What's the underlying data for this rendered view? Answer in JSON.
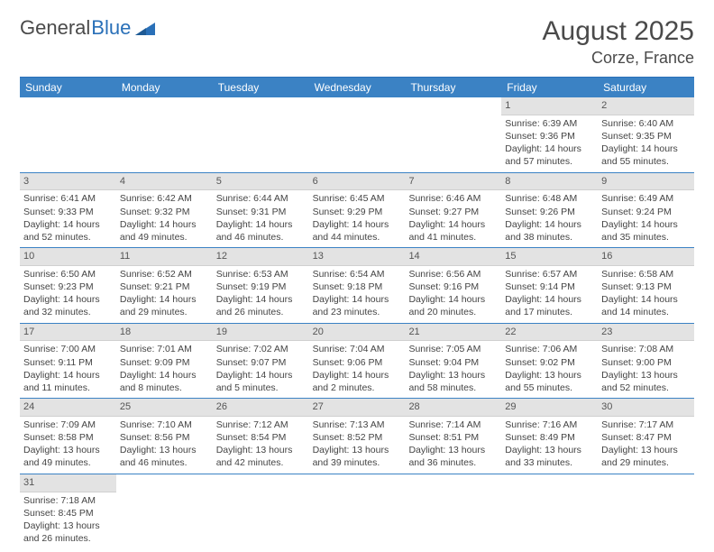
{
  "logo": {
    "text1": "General",
    "text2": "Blue"
  },
  "title": "August 2025",
  "location": "Corze, France",
  "day_headers": [
    "Sunday",
    "Monday",
    "Tuesday",
    "Wednesday",
    "Thursday",
    "Friday",
    "Saturday"
  ],
  "colors": {
    "header_bg": "#3b82c4",
    "header_text": "#ffffff",
    "daynum_bg": "#e3e3e3",
    "border": "#3b82c4",
    "text": "#444444"
  },
  "weeks": [
    [
      {
        "n": "",
        "sr": "",
        "ss": "",
        "dl": ""
      },
      {
        "n": "",
        "sr": "",
        "ss": "",
        "dl": ""
      },
      {
        "n": "",
        "sr": "",
        "ss": "",
        "dl": ""
      },
      {
        "n": "",
        "sr": "",
        "ss": "",
        "dl": ""
      },
      {
        "n": "",
        "sr": "",
        "ss": "",
        "dl": ""
      },
      {
        "n": "1",
        "sr": "Sunrise: 6:39 AM",
        "ss": "Sunset: 9:36 PM",
        "dl": "Daylight: 14 hours and 57 minutes."
      },
      {
        "n": "2",
        "sr": "Sunrise: 6:40 AM",
        "ss": "Sunset: 9:35 PM",
        "dl": "Daylight: 14 hours and 55 minutes."
      }
    ],
    [
      {
        "n": "3",
        "sr": "Sunrise: 6:41 AM",
        "ss": "Sunset: 9:33 PM",
        "dl": "Daylight: 14 hours and 52 minutes."
      },
      {
        "n": "4",
        "sr": "Sunrise: 6:42 AM",
        "ss": "Sunset: 9:32 PM",
        "dl": "Daylight: 14 hours and 49 minutes."
      },
      {
        "n": "5",
        "sr": "Sunrise: 6:44 AM",
        "ss": "Sunset: 9:31 PM",
        "dl": "Daylight: 14 hours and 46 minutes."
      },
      {
        "n": "6",
        "sr": "Sunrise: 6:45 AM",
        "ss": "Sunset: 9:29 PM",
        "dl": "Daylight: 14 hours and 44 minutes."
      },
      {
        "n": "7",
        "sr": "Sunrise: 6:46 AM",
        "ss": "Sunset: 9:27 PM",
        "dl": "Daylight: 14 hours and 41 minutes."
      },
      {
        "n": "8",
        "sr": "Sunrise: 6:48 AM",
        "ss": "Sunset: 9:26 PM",
        "dl": "Daylight: 14 hours and 38 minutes."
      },
      {
        "n": "9",
        "sr": "Sunrise: 6:49 AM",
        "ss": "Sunset: 9:24 PM",
        "dl": "Daylight: 14 hours and 35 minutes."
      }
    ],
    [
      {
        "n": "10",
        "sr": "Sunrise: 6:50 AM",
        "ss": "Sunset: 9:23 PM",
        "dl": "Daylight: 14 hours and 32 minutes."
      },
      {
        "n": "11",
        "sr": "Sunrise: 6:52 AM",
        "ss": "Sunset: 9:21 PM",
        "dl": "Daylight: 14 hours and 29 minutes."
      },
      {
        "n": "12",
        "sr": "Sunrise: 6:53 AM",
        "ss": "Sunset: 9:19 PM",
        "dl": "Daylight: 14 hours and 26 minutes."
      },
      {
        "n": "13",
        "sr": "Sunrise: 6:54 AM",
        "ss": "Sunset: 9:18 PM",
        "dl": "Daylight: 14 hours and 23 minutes."
      },
      {
        "n": "14",
        "sr": "Sunrise: 6:56 AM",
        "ss": "Sunset: 9:16 PM",
        "dl": "Daylight: 14 hours and 20 minutes."
      },
      {
        "n": "15",
        "sr": "Sunrise: 6:57 AM",
        "ss": "Sunset: 9:14 PM",
        "dl": "Daylight: 14 hours and 17 minutes."
      },
      {
        "n": "16",
        "sr": "Sunrise: 6:58 AM",
        "ss": "Sunset: 9:13 PM",
        "dl": "Daylight: 14 hours and 14 minutes."
      }
    ],
    [
      {
        "n": "17",
        "sr": "Sunrise: 7:00 AM",
        "ss": "Sunset: 9:11 PM",
        "dl": "Daylight: 14 hours and 11 minutes."
      },
      {
        "n": "18",
        "sr": "Sunrise: 7:01 AM",
        "ss": "Sunset: 9:09 PM",
        "dl": "Daylight: 14 hours and 8 minutes."
      },
      {
        "n": "19",
        "sr": "Sunrise: 7:02 AM",
        "ss": "Sunset: 9:07 PM",
        "dl": "Daylight: 14 hours and 5 minutes."
      },
      {
        "n": "20",
        "sr": "Sunrise: 7:04 AM",
        "ss": "Sunset: 9:06 PM",
        "dl": "Daylight: 14 hours and 2 minutes."
      },
      {
        "n": "21",
        "sr": "Sunrise: 7:05 AM",
        "ss": "Sunset: 9:04 PM",
        "dl": "Daylight: 13 hours and 58 minutes."
      },
      {
        "n": "22",
        "sr": "Sunrise: 7:06 AM",
        "ss": "Sunset: 9:02 PM",
        "dl": "Daylight: 13 hours and 55 minutes."
      },
      {
        "n": "23",
        "sr": "Sunrise: 7:08 AM",
        "ss": "Sunset: 9:00 PM",
        "dl": "Daylight: 13 hours and 52 minutes."
      }
    ],
    [
      {
        "n": "24",
        "sr": "Sunrise: 7:09 AM",
        "ss": "Sunset: 8:58 PM",
        "dl": "Daylight: 13 hours and 49 minutes."
      },
      {
        "n": "25",
        "sr": "Sunrise: 7:10 AM",
        "ss": "Sunset: 8:56 PM",
        "dl": "Daylight: 13 hours and 46 minutes."
      },
      {
        "n": "26",
        "sr": "Sunrise: 7:12 AM",
        "ss": "Sunset: 8:54 PM",
        "dl": "Daylight: 13 hours and 42 minutes."
      },
      {
        "n": "27",
        "sr": "Sunrise: 7:13 AM",
        "ss": "Sunset: 8:52 PM",
        "dl": "Daylight: 13 hours and 39 minutes."
      },
      {
        "n": "28",
        "sr": "Sunrise: 7:14 AM",
        "ss": "Sunset: 8:51 PM",
        "dl": "Daylight: 13 hours and 36 minutes."
      },
      {
        "n": "29",
        "sr": "Sunrise: 7:16 AM",
        "ss": "Sunset: 8:49 PM",
        "dl": "Daylight: 13 hours and 33 minutes."
      },
      {
        "n": "30",
        "sr": "Sunrise: 7:17 AM",
        "ss": "Sunset: 8:47 PM",
        "dl": "Daylight: 13 hours and 29 minutes."
      }
    ],
    [
      {
        "n": "31",
        "sr": "Sunrise: 7:18 AM",
        "ss": "Sunset: 8:45 PM",
        "dl": "Daylight: 13 hours and 26 minutes."
      },
      {
        "n": "",
        "sr": "",
        "ss": "",
        "dl": ""
      },
      {
        "n": "",
        "sr": "",
        "ss": "",
        "dl": ""
      },
      {
        "n": "",
        "sr": "",
        "ss": "",
        "dl": ""
      },
      {
        "n": "",
        "sr": "",
        "ss": "",
        "dl": ""
      },
      {
        "n": "",
        "sr": "",
        "ss": "",
        "dl": ""
      },
      {
        "n": "",
        "sr": "",
        "ss": "",
        "dl": ""
      }
    ]
  ]
}
